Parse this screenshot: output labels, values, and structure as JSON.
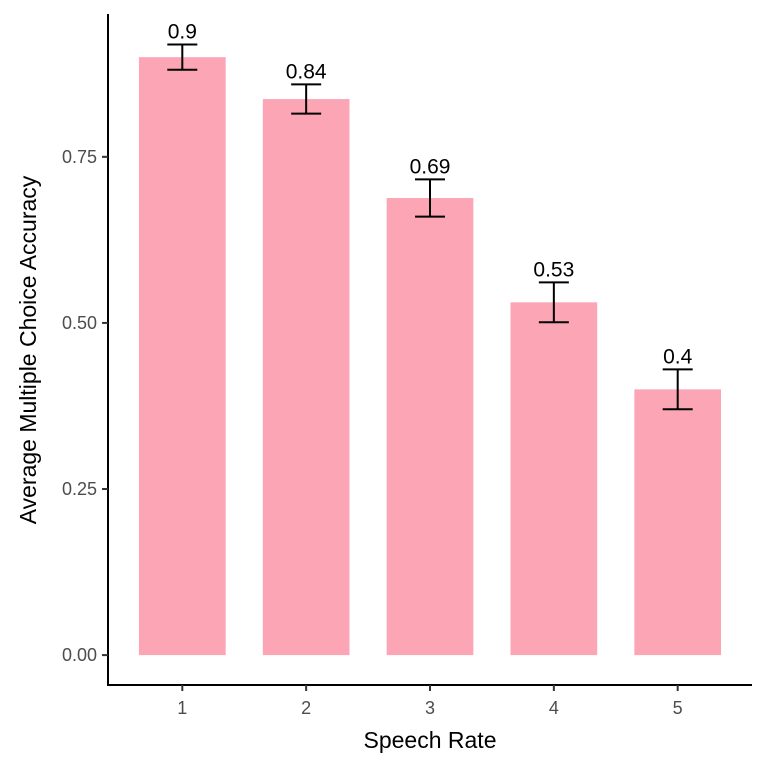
{
  "chart_data": {
    "type": "bar",
    "title": "",
    "xlabel": "Speech Rate",
    "ylabel": "Average Multiple Choice Accuracy",
    "categories": [
      "1",
      "2",
      "3",
      "4",
      "5"
    ],
    "values": [
      0.9,
      0.837,
      0.688,
      0.531,
      0.4
    ],
    "data_labels": [
      "0.9",
      "0.84",
      "0.69",
      "0.53",
      "0.4"
    ],
    "error_low": [
      0.881,
      0.815,
      0.66,
      0.501,
      0.37
    ],
    "error_high": [
      0.919,
      0.859,
      0.716,
      0.561,
      0.43
    ],
    "ylim": [
      -0.045,
      0.965
    ],
    "yticks": [
      0.0,
      0.25,
      0.5,
      0.75
    ],
    "ytick_labels": [
      "0.00",
      "0.25",
      "0.50",
      "0.75"
    ],
    "grid": false,
    "legend": "none",
    "colors": {
      "bar": "#FCA6B5",
      "error_bar": "#000000",
      "axis": "#000000"
    }
  }
}
